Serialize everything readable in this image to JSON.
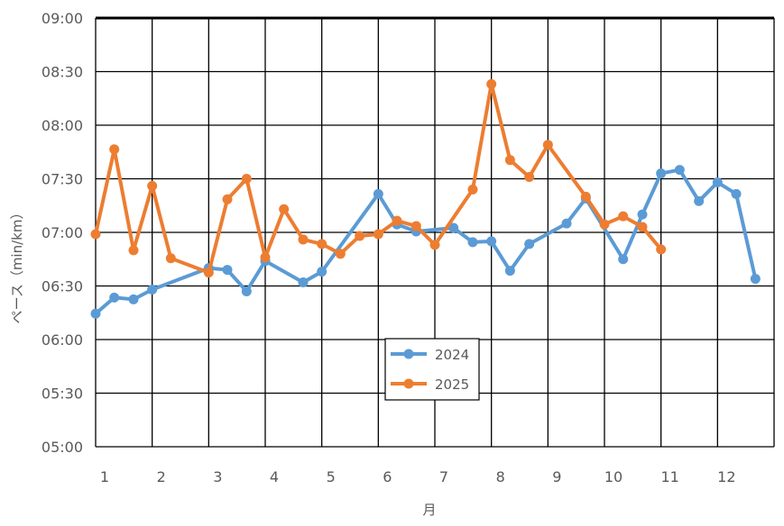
{
  "chart_data": {
    "type": "line",
    "title": "",
    "xlabel": "月",
    "ylabel": "ペース（min/km）",
    "x_ticks": [
      "1",
      "2",
      "3",
      "4",
      "5",
      "6",
      "7",
      "8",
      "9",
      "10",
      "11",
      "12"
    ],
    "y_ticks": [
      "05:00",
      "05:30",
      "06:00",
      "06:30",
      "07:00",
      "07:30",
      "08:00",
      "08:30",
      "09:00"
    ],
    "xlim": [
      1,
      13
    ],
    "ylim_minutes": [
      300,
      540
    ],
    "grid": true,
    "legend_position": "bottom-center",
    "series": [
      {
        "name": "2024",
        "color": "#5b9bd5",
        "x": [
          1.0,
          1.33,
          1.67,
          2.0,
          3.0,
          3.33,
          3.67,
          4.0,
          4.67,
          5.0,
          6.0,
          6.33,
          6.67,
          7.33,
          7.67,
          8.0,
          8.33,
          8.67,
          9.33,
          9.67,
          10.33,
          10.67,
          11.0,
          11.33,
          11.67,
          12.0,
          12.33,
          12.67
        ],
        "values": [
          374.5,
          383.5,
          382.5,
          388,
          400,
          399,
          387,
          404,
          392,
          398,
          441.5,
          424.5,
          420.5,
          422.5,
          414.5,
          415,
          398.5,
          413.5,
          425,
          439,
          405,
          430,
          453,
          455,
          437.5,
          448,
          441.5,
          394
        ]
      },
      {
        "name": "2025",
        "color": "#ed7d31",
        "x": [
          1.0,
          1.33,
          1.67,
          2.0,
          2.33,
          3.0,
          3.33,
          3.67,
          4.0,
          4.33,
          4.67,
          5.0,
          5.33,
          5.67,
          6.0,
          6.33,
          6.67,
          7.0,
          7.67,
          8.0,
          8.33,
          8.67,
          9.0,
          9.67,
          10.0,
          10.33,
          10.67,
          11.0
        ],
        "values": [
          419,
          466.5,
          410,
          446,
          405.5,
          397.5,
          438.5,
          450,
          406,
          433,
          416,
          413.5,
          408,
          418,
          419,
          426.5,
          423.5,
          413,
          444,
          503,
          460.5,
          451,
          469,
          440,
          424.5,
          429,
          423,
          410.5
        ]
      }
    ]
  }
}
